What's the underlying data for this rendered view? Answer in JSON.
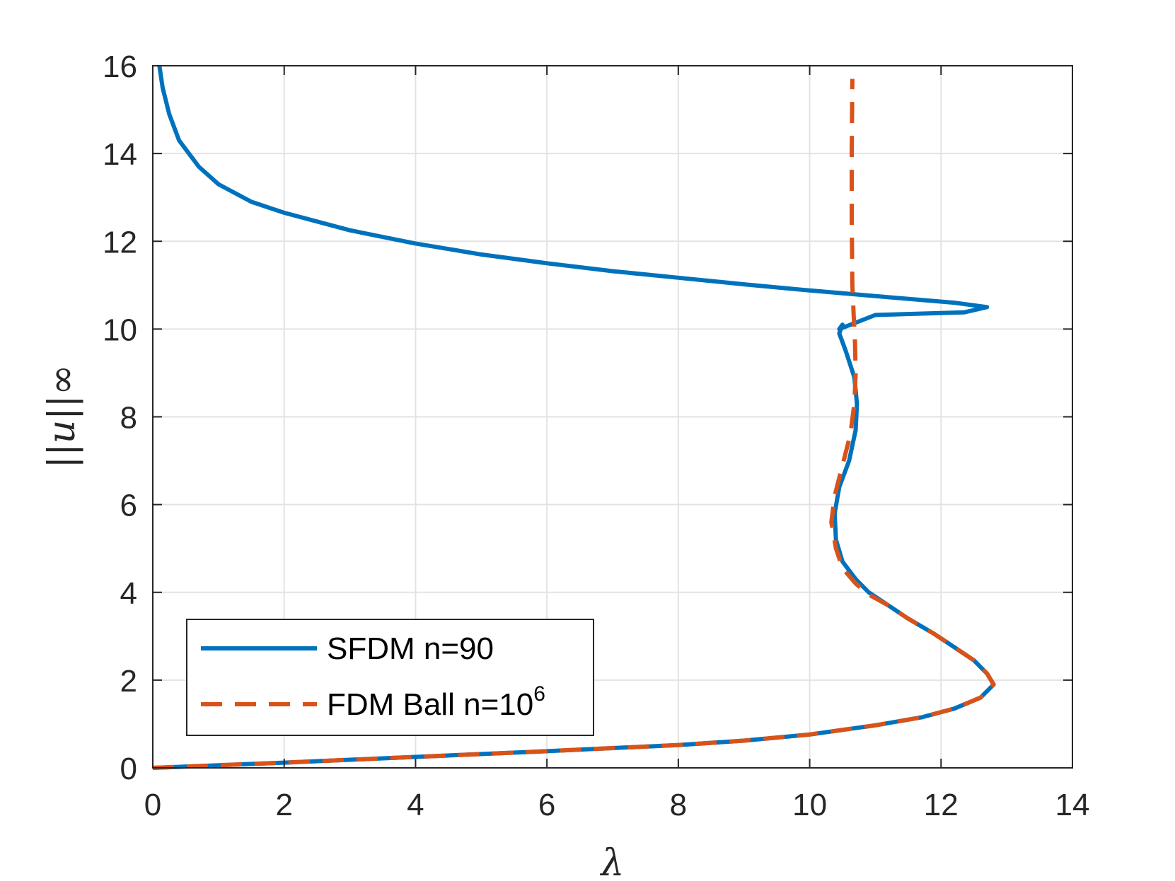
{
  "chart_data": {
    "type": "line",
    "title": "",
    "xlabel": "λ",
    "ylabel": "||u||∞",
    "xlim": [
      0,
      14
    ],
    "ylim": [
      0,
      16
    ],
    "xticks": [
      "0",
      "2",
      "4",
      "6",
      "8",
      "10",
      "12",
      "14"
    ],
    "yticks": [
      "0",
      "2",
      "4",
      "6",
      "8",
      "10",
      "12",
      "14",
      "16"
    ],
    "grid": true,
    "legend_placement": "bottom-left",
    "series": [
      {
        "name": "SFDM n=90",
        "color": "#0072BD",
        "style": "solid",
        "x": [
          0,
          2,
          4,
          6,
          8,
          9,
          10,
          11,
          11.7,
          12.2,
          12.6,
          12.8,
          12.7,
          12.5,
          12.2,
          11.9,
          11.5,
          11.2,
          10.9,
          10.7,
          10.5,
          10.4,
          10.38,
          10.45,
          10.6,
          10.7,
          10.72,
          10.68,
          10.55,
          10.45,
          10.5,
          10.45,
          11.0,
          12.35,
          12.7,
          12.2,
          11.0,
          10.0,
          9.0,
          8.0,
          7.0,
          6.0,
          5.0,
          4.0,
          3.0,
          2.0,
          1.5,
          1.0,
          0.7,
          0.4,
          0.25,
          0.15,
          0.1
        ],
        "y": [
          0,
          0.12,
          0.25,
          0.38,
          0.52,
          0.62,
          0.76,
          0.97,
          1.15,
          1.35,
          1.6,
          1.9,
          2.15,
          2.45,
          2.75,
          3.05,
          3.4,
          3.7,
          4.0,
          4.3,
          4.7,
          5.2,
          5.8,
          6.4,
          7.0,
          7.7,
          8.3,
          8.9,
          9.5,
          9.9,
          10.1,
          10.0,
          10.32,
          10.38,
          10.5,
          10.6,
          10.75,
          10.88,
          11.02,
          11.17,
          11.32,
          11.5,
          11.7,
          11.95,
          12.25,
          12.65,
          12.9,
          13.3,
          13.7,
          14.3,
          14.9,
          15.5,
          16.0
        ]
      },
      {
        "name": "FDM Ball n=10^6",
        "label_base": "FDM Ball n=10",
        "label_exponent": "6",
        "color": "#D95319",
        "style": "dashed",
        "x": [
          0,
          2,
          4,
          6,
          8,
          9,
          10,
          11,
          11.7,
          12.2,
          12.6,
          12.8,
          12.7,
          12.5,
          12.2,
          11.9,
          11.5,
          11.2,
          10.9,
          10.7,
          10.5,
          10.4,
          10.33,
          10.38,
          10.5,
          10.62,
          10.68,
          10.7,
          10.69,
          10.67,
          10.65,
          10.64,
          10.64,
          10.65
        ],
        "y": [
          0,
          0.12,
          0.25,
          0.38,
          0.52,
          0.62,
          0.76,
          0.97,
          1.15,
          1.35,
          1.6,
          1.9,
          2.15,
          2.45,
          2.75,
          3.05,
          3.4,
          3.7,
          3.95,
          4.2,
          4.55,
          5.0,
          5.6,
          6.2,
          6.9,
          7.6,
          8.3,
          9.0,
          9.7,
          10.3,
          11.0,
          12.5,
          14.0,
          15.7
        ]
      }
    ]
  }
}
